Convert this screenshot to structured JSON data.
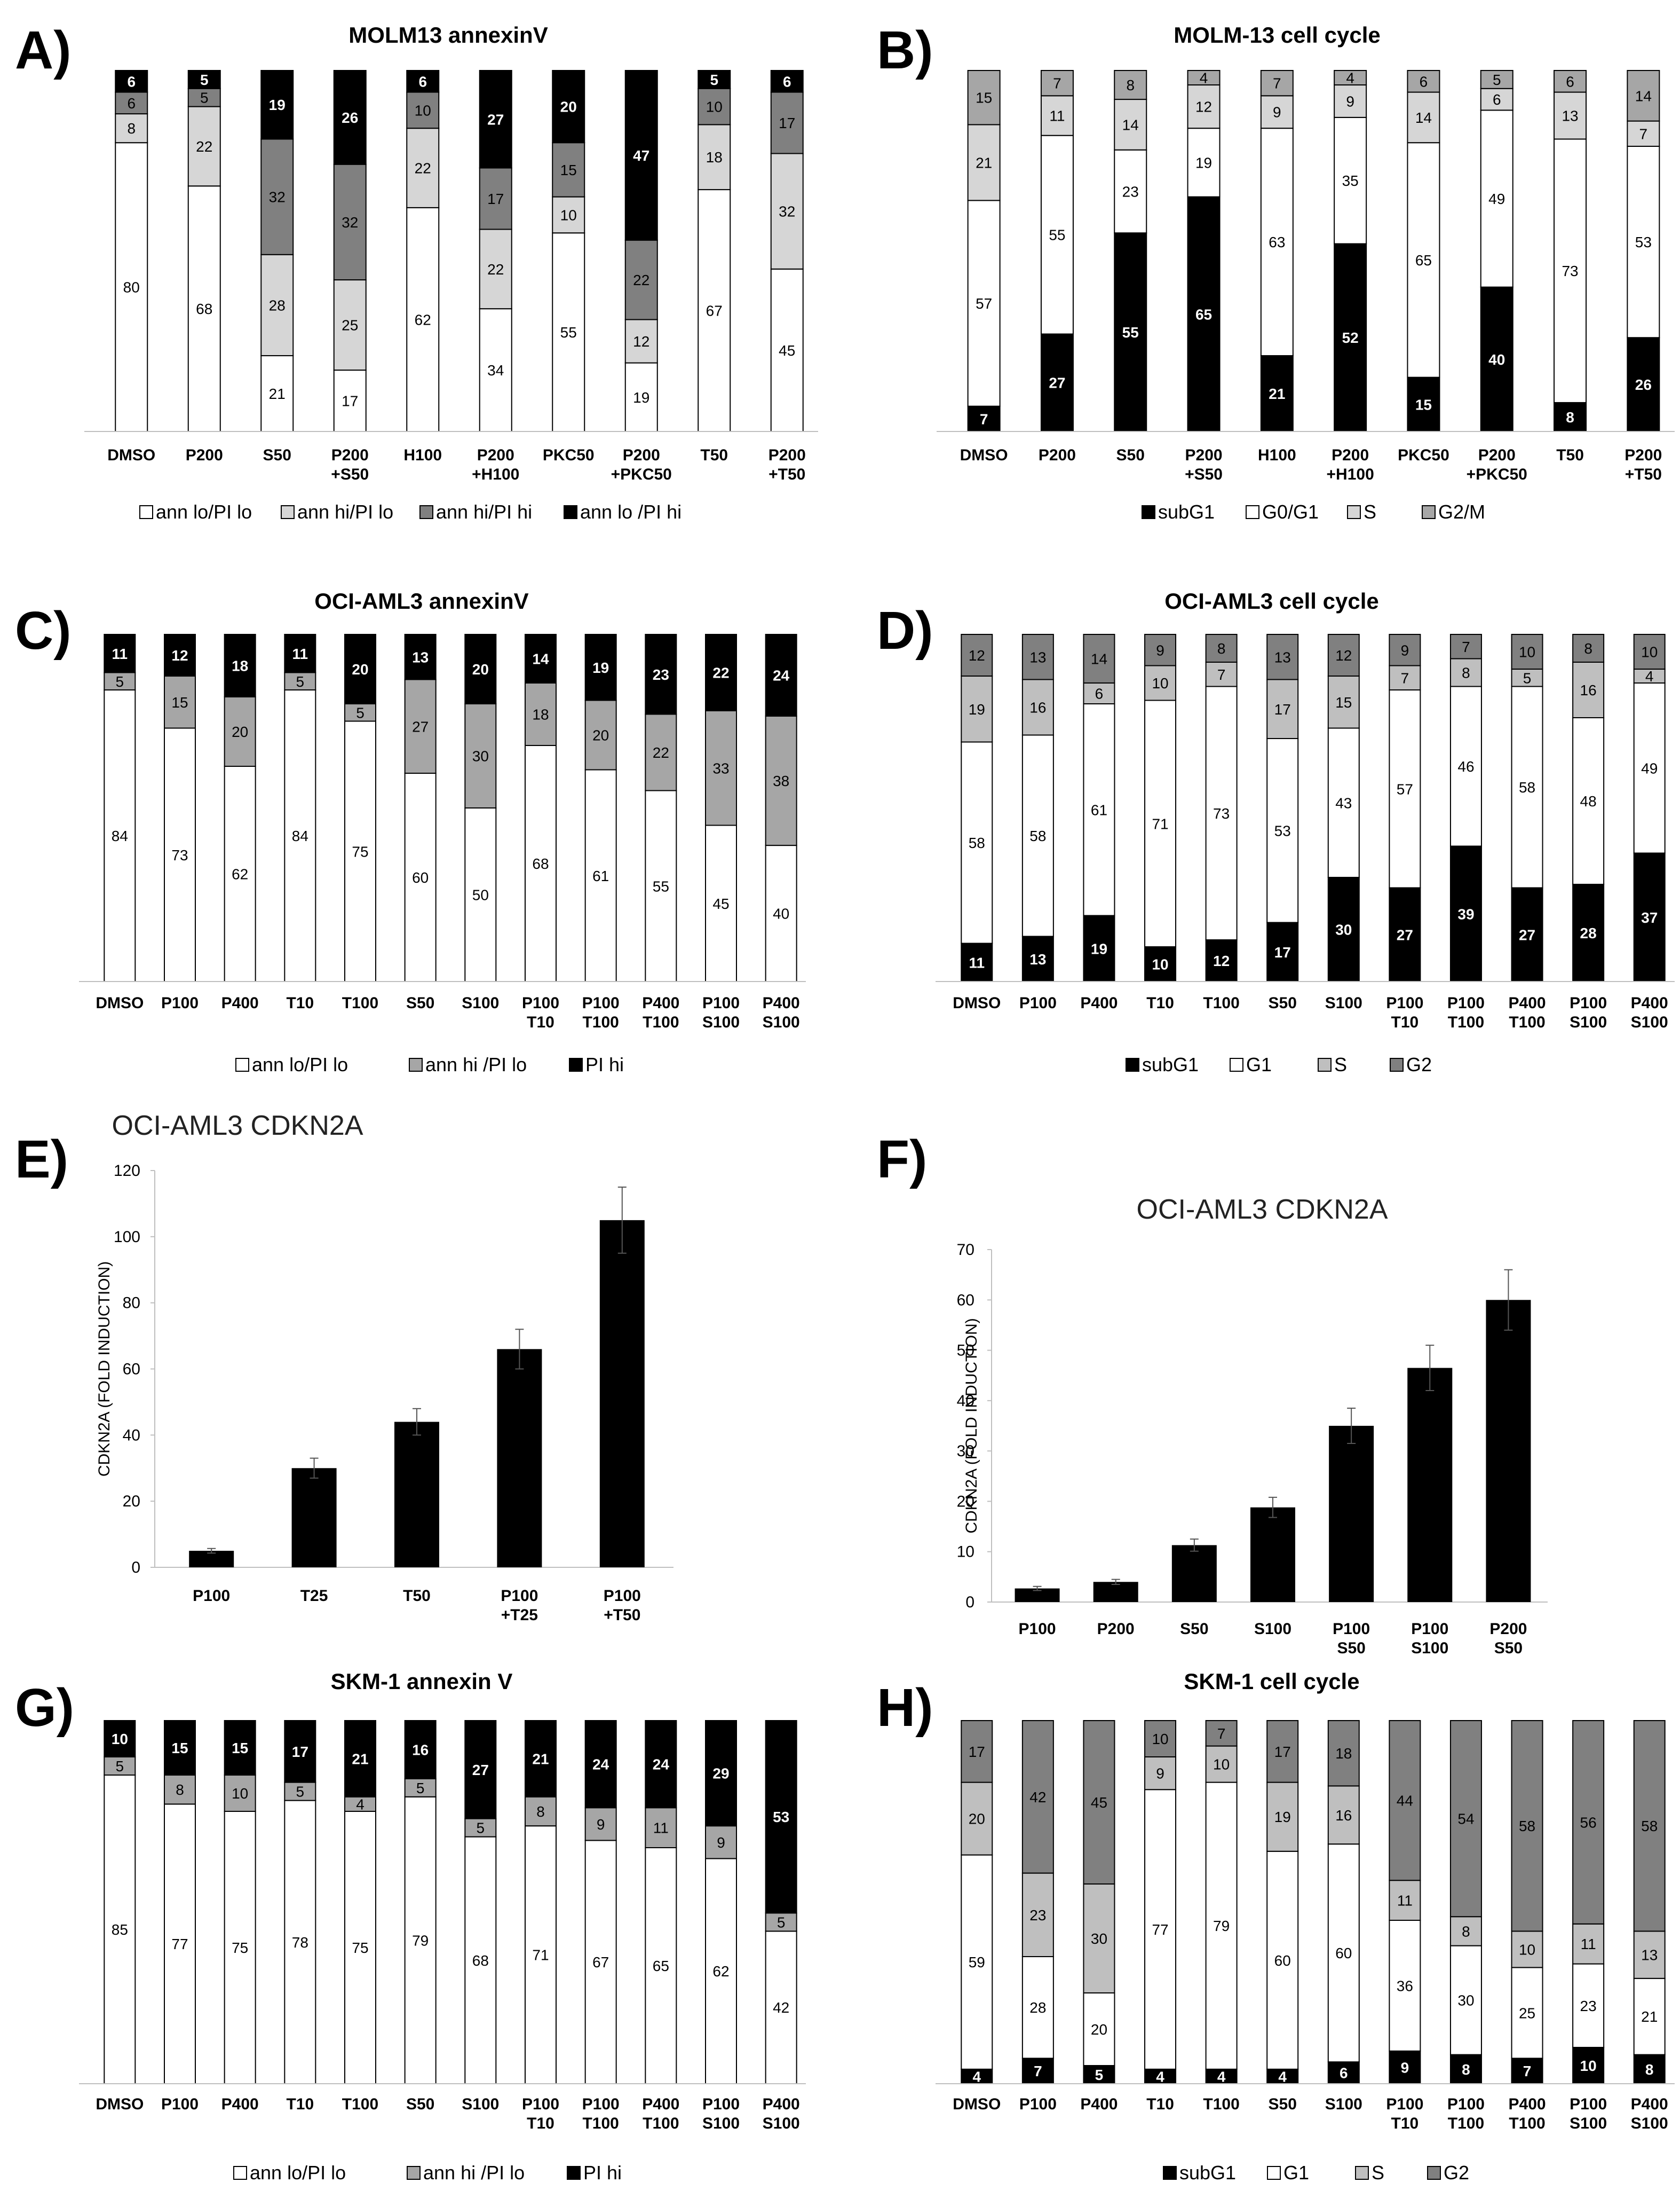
{
  "figure": {
    "colors": {
      "black": "#000000",
      "white": "#ffffff",
      "light_gray": "#d6d6d6",
      "mid_gray": "#a6a6a6",
      "dark_gray": "#808080",
      "axis": "#bfbfbf"
    }
  },
  "chart_data": [
    {
      "panel": "A)",
      "type": "stacked_bar",
      "title": "MOLM13 annexinV",
      "categories": [
        "DMSO",
        "P200",
        "S50",
        "P200\n+S50",
        "H100",
        "P200\n+H100",
        "PKC50",
        "P200\n+PKC50",
        "T50",
        "P200\n+T50"
      ],
      "series": [
        {
          "name": "ann lo/PI lo",
          "color": "#ffffff",
          "values": [
            80,
            68,
            21,
            17,
            62,
            34,
            55,
            19,
            67,
            45
          ]
        },
        {
          "name": "ann hi/PI lo",
          "color": "#d6d6d6",
          "values": [
            8,
            22,
            28,
            25,
            22,
            22,
            10,
            12,
            18,
            32
          ]
        },
        {
          "name": "ann hi/PI hi",
          "color": "#808080",
          "values": [
            6,
            5,
            32,
            32,
            10,
            17,
            15,
            22,
            10,
            17
          ]
        },
        {
          "name": "ann lo /PI hi",
          "color": "#000000",
          "values": [
            6,
            5,
            19,
            26,
            6,
            27,
            20,
            47,
            5,
            6
          ]
        }
      ]
    },
    {
      "panel": "B)",
      "type": "stacked_bar",
      "title": "MOLM-13 cell cycle",
      "categories": [
        "DMSO",
        "P200",
        "S50",
        "P200\n+S50",
        "H100",
        "P200\n+H100",
        "PKC50",
        "P200\n+PKC50",
        "T50",
        "P200\n+T50"
      ],
      "series": [
        {
          "name": "subG1",
          "color": "#000000",
          "values": [
            7,
            27,
            55,
            65,
            21,
            52,
            15,
            40,
            8,
            26
          ]
        },
        {
          "name": "G0/G1",
          "color": "#ffffff",
          "values": [
            57,
            55,
            23,
            19,
            63,
            35,
            65,
            49,
            73,
            53
          ]
        },
        {
          "name": "S",
          "color": "#d6d6d6",
          "values": [
            21,
            11,
            14,
            12,
            9,
            9,
            14,
            6,
            13,
            7
          ]
        },
        {
          "name": "G2/M",
          "color": "#a6a6a6",
          "values": [
            15,
            7,
            8,
            4,
            7,
            4,
            6,
            5,
            6,
            14
          ]
        }
      ]
    },
    {
      "panel": "C)",
      "type": "stacked_bar",
      "title": "OCI-AML3 annexinV",
      "categories": [
        "DMSO",
        "P100",
        "P400",
        "T10",
        "T100",
        "S50",
        "S100",
        "P100\nT10",
        "P100\nT100",
        "P400\nT100",
        "P100\nS100",
        "P400\nS100"
      ],
      "series": [
        {
          "name": "ann lo/PI lo",
          "color": "#ffffff",
          "values": [
            84,
            73,
            62,
            84,
            75,
            60,
            50,
            68,
            61,
            55,
            45,
            40
          ]
        },
        {
          "name": "ann hi /PI lo",
          "color": "#a6a6a6",
          "values": [
            5,
            15,
            20,
            5,
            5,
            27,
            30,
            18,
            20,
            22,
            33,
            38
          ]
        },
        {
          "name": "PI hi",
          "color": "#000000",
          "values": [
            11,
            12,
            18,
            11,
            20,
            13,
            20,
            14,
            19,
            23,
            22,
            24
          ]
        }
      ]
    },
    {
      "panel": "D)",
      "type": "stacked_bar",
      "title": "OCI-AML3 cell cycle",
      "categories": [
        "DMSO",
        "P100",
        "P400",
        "T10",
        "T100",
        "S50",
        "S100",
        "P100\nT10",
        "P100\nT100",
        "P400\nT100",
        "P100\nS100",
        "P400\nS100"
      ],
      "series": [
        {
          "name": "subG1",
          "color": "#000000",
          "values": [
            11,
            13,
            19,
            10,
            12,
            17,
            30,
            27,
            39,
            27,
            28,
            37
          ]
        },
        {
          "name": "G1",
          "color": "#ffffff",
          "values": [
            58,
            58,
            61,
            71,
            73,
            53,
            43,
            57,
            46,
            58,
            48,
            49
          ]
        },
        {
          "name": "S",
          "color": "#bfbfbf",
          "values": [
            19,
            16,
            6,
            10,
            7,
            17,
            15,
            7,
            8,
            5,
            16,
            4
          ]
        },
        {
          "name": "G2",
          "color": "#808080",
          "values": [
            12,
            13,
            14,
            9,
            8,
            13,
            12,
            9,
            7,
            10,
            8,
            10
          ]
        }
      ]
    },
    {
      "panel": "E)",
      "type": "bar",
      "title": "OCI-AML3   CDKN2A",
      "ylabel": "CDKN2A   (FOLD INDUCTION)",
      "categories": [
        "P100",
        "T25",
        "T50",
        "P100\n+T25",
        "P100\n+T50"
      ],
      "values": [
        5,
        30,
        44,
        66,
        105
      ],
      "errors": [
        0.7,
        3,
        4,
        6,
        10
      ],
      "ylim": [
        0,
        120
      ],
      "yticks": [
        0,
        20,
        40,
        60,
        80,
        100,
        120
      ]
    },
    {
      "panel": "F)",
      "type": "bar",
      "title": "OCI-AML3 CDKN2A",
      "ylabel": "CDKN2A   (FOLD INDUCTION)",
      "categories": [
        "P100",
        "P200",
        "S50",
        "S100",
        "P100\nS50",
        "P100\nS100",
        "P200\nS50"
      ],
      "values": [
        2.7,
        4,
        11.3,
        18.8,
        35,
        46.5,
        60
      ],
      "errors": [
        0.4,
        0.5,
        1.2,
        2,
        3.5,
        4.5,
        6
      ],
      "ylim": [
        0,
        70
      ],
      "yticks": [
        0,
        10,
        20,
        30,
        40,
        50,
        60,
        70
      ]
    },
    {
      "panel": "G)",
      "type": "stacked_bar",
      "title": "SKM-1 annexin V",
      "categories": [
        "DMSO",
        "P100",
        "P400",
        "T10",
        "T100",
        "S50",
        "S100",
        "P100\nT10",
        "P100\nT100",
        "P400\nT100",
        "P100\nS100",
        "P400\nS100"
      ],
      "series": [
        {
          "name": "ann lo/PI lo",
          "color": "#ffffff",
          "values": [
            85,
            77,
            75,
            78,
            75,
            79,
            68,
            71,
            67,
            65,
            62,
            42
          ]
        },
        {
          "name": "ann hi /PI lo",
          "color": "#a6a6a6",
          "values": [
            5,
            8,
            10,
            5,
            4,
            5,
            5,
            8,
            9,
            11,
            9,
            5
          ]
        },
        {
          "name": "PI hi",
          "color": "#000000",
          "values": [
            10,
            15,
            15,
            17,
            21,
            16,
            27,
            21,
            24,
            24,
            29,
            53
          ]
        }
      ]
    },
    {
      "panel": "H)",
      "type": "stacked_bar",
      "title": "SKM-1 cell cycle",
      "categories": [
        "DMSO",
        "P100",
        "P400",
        "T10",
        "T100",
        "S50",
        "S100",
        "P100\nT10",
        "P100\nT100",
        "P400\nT100",
        "P100\nS100",
        "P400\nS100"
      ],
      "series": [
        {
          "name": "subG1",
          "color": "#000000",
          "values": [
            4,
            7,
            5,
            4,
            4,
            4,
            6,
            9,
            8,
            7,
            10,
            8
          ]
        },
        {
          "name": "G1",
          "color": "#ffffff",
          "values": [
            59,
            28,
            20,
            77,
            79,
            60,
            60,
            36,
            30,
            25,
            23,
            21
          ]
        },
        {
          "name": "S",
          "color": "#bfbfbf",
          "values": [
            20,
            23,
            30,
            9,
            10,
            19,
            16,
            11,
            8,
            10,
            11,
            13
          ]
        },
        {
          "name": "G2",
          "color": "#808080",
          "values": [
            17,
            42,
            45,
            10,
            7,
            17,
            18,
            44,
            54,
            58,
            56,
            58
          ]
        }
      ]
    }
  ]
}
